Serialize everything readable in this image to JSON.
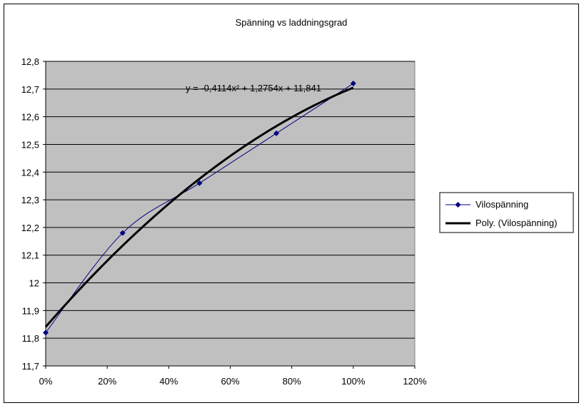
{
  "chart_data": {
    "type": "scatter",
    "title": "Spänning vs laddningsgrad",
    "xlabel": "",
    "ylabel": "",
    "xlim": [
      0,
      1.2
    ],
    "ylim": [
      11.7,
      12.8
    ],
    "x_ticks": [
      "0%",
      "20%",
      "40%",
      "60%",
      "80%",
      "100%",
      "120%"
    ],
    "y_ticks": [
      "11,7",
      "11,8",
      "11,9",
      "12",
      "12,1",
      "12,2",
      "12,3",
      "12,4",
      "12,5",
      "12,6",
      "12,7",
      "12,8"
    ],
    "grid": true,
    "legend_position": "right",
    "plot_background": "#c0c0c0",
    "series": [
      {
        "name": "Vilospänning",
        "x": [
          0,
          0.25,
          0.5,
          0.75,
          1.0
        ],
        "y": [
          11.82,
          12.18,
          12.36,
          12.54,
          12.72
        ],
        "color": "#000080",
        "marker": "diamond"
      }
    ],
    "trendline": {
      "name": "Poly. (Vilospänning)",
      "type": "polynomial",
      "coefficients": [
        -0.4114,
        1.2754,
        11.841
      ],
      "x_range": [
        0,
        1.0
      ],
      "color": "#000000",
      "equation_label": "y = -0,4114x² + 1,2754x + 11,841"
    }
  }
}
